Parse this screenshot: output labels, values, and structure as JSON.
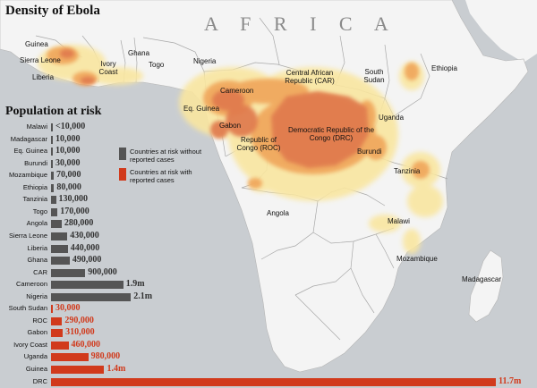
{
  "title": "Density of Ebola",
  "continent_label": "A F R I C A",
  "countries": [
    {
      "key": "guinea",
      "label": "Guinea"
    },
    {
      "key": "sierra-leone",
      "label": "Sierra Leone"
    },
    {
      "key": "liberia",
      "label": "Liberia"
    },
    {
      "key": "ivory-coast",
      "label": "Ivory Coast"
    },
    {
      "key": "ghana",
      "label": "Ghana"
    },
    {
      "key": "togo",
      "label": "Togo"
    },
    {
      "key": "nigeria",
      "label": "Nigeria"
    },
    {
      "key": "cameroon",
      "label": "Cameroon"
    },
    {
      "key": "car",
      "label": "Central African Republic (CAR)"
    },
    {
      "key": "south-sudan",
      "label": "South Sudan"
    },
    {
      "key": "ethiopia",
      "label": "Ethiopia"
    },
    {
      "key": "eq-guinea",
      "label": "Eq. Guinea"
    },
    {
      "key": "gabon",
      "label": "Gabon"
    },
    {
      "key": "roc",
      "label": "Republic of Congo (ROC)"
    },
    {
      "key": "drc",
      "label": "Democratic Republic of the Congo (DRC)"
    },
    {
      "key": "uganda",
      "label": "Uganda"
    },
    {
      "key": "burundi",
      "label": "Burundi"
    },
    {
      "key": "tanzania",
      "label": "Tanzinia"
    },
    {
      "key": "angola",
      "label": "Angola"
    },
    {
      "key": "malawi",
      "label": "Malawi"
    },
    {
      "key": "mozambique",
      "label": "Mozambique"
    },
    {
      "key": "madagascar",
      "label": "Madagascar"
    }
  ],
  "colors": {
    "land": "#f4f4f4",
    "water": "#c9cdd1",
    "border": "#9a9a9a",
    "density_low": "#f9e6a0",
    "density_mid": "#f0a55a",
    "density_high": "#e07a4e",
    "no_cases": "#555555",
    "with_cases": "#d13a1c"
  },
  "chart_data": {
    "type": "bar",
    "orientation": "horizontal",
    "title": "Population at risk",
    "legend": [
      {
        "key": "no_cases",
        "label": "Countries at risk without reported cases"
      },
      {
        "key": "with_cases",
        "label": "Countries at risk with reported cases"
      }
    ],
    "legend_placement": "right-of-bars",
    "rows": [
      {
        "country": "Malawi",
        "value": 10000,
        "label": "<10,000",
        "group": "no_cases"
      },
      {
        "country": "Madagascar",
        "value": 10000,
        "label": "10,000",
        "group": "no_cases"
      },
      {
        "country": "Eq. Guinea",
        "value": 10000,
        "label": "10,000",
        "group": "no_cases"
      },
      {
        "country": "Burundi",
        "value": 30000,
        "label": "30,000",
        "group": "no_cases"
      },
      {
        "country": "Mozambique",
        "value": 70000,
        "label": "70,000",
        "group": "no_cases"
      },
      {
        "country": "Ethiopia",
        "value": 80000,
        "label": "80,000",
        "group": "no_cases"
      },
      {
        "country": "Tanzinia",
        "value": 130000,
        "label": "130,000",
        "group": "no_cases"
      },
      {
        "country": "Togo",
        "value": 170000,
        "label": "170,000",
        "group": "no_cases"
      },
      {
        "country": "Angola",
        "value": 280000,
        "label": "280,000",
        "group": "no_cases"
      },
      {
        "country": "Sierra Leone",
        "value": 430000,
        "label": "430,000",
        "group": "no_cases"
      },
      {
        "country": "Liberia",
        "value": 440000,
        "label": "440,000",
        "group": "no_cases"
      },
      {
        "country": "Ghana",
        "value": 490000,
        "label": "490,000",
        "group": "no_cases"
      },
      {
        "country": "CAR",
        "value": 900000,
        "label": "900,000",
        "group": "no_cases"
      },
      {
        "country": "Cameroon",
        "value": 1900000,
        "label": "1.9m",
        "group": "no_cases"
      },
      {
        "country": "Nigeria",
        "value": 2100000,
        "label": "2.1m",
        "group": "no_cases"
      },
      {
        "country": "South Sudan",
        "value": 30000,
        "label": "30,000",
        "group": "with_cases"
      },
      {
        "country": "ROC",
        "value": 290000,
        "label": "290,000",
        "group": "with_cases"
      },
      {
        "country": "Gabon",
        "value": 310000,
        "label": "310,000",
        "group": "with_cases"
      },
      {
        "country": "Ivory Coast",
        "value": 460000,
        "label": "460,000",
        "group": "with_cases"
      },
      {
        "country": "Uganda",
        "value": 980000,
        "label": "980,000",
        "group": "with_cases"
      },
      {
        "country": "Guinea",
        "value": 1400000,
        "label": "1.4m",
        "group": "with_cases"
      },
      {
        "country": "DRC",
        "value": 11700000,
        "label": "11.7m",
        "group": "with_cases"
      }
    ]
  }
}
